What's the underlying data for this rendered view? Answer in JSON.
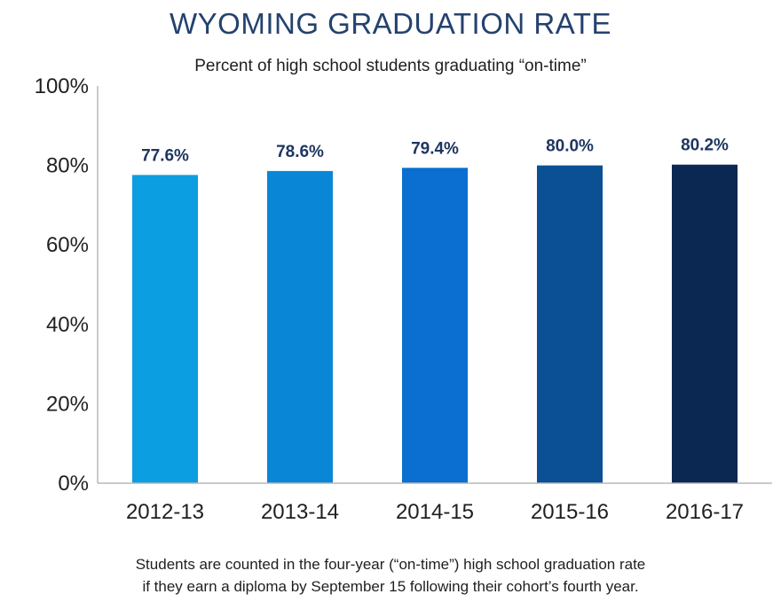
{
  "chart_data": {
    "type": "bar",
    "title": "WYOMING GRADUATION RATE",
    "subtitle": "Percent of high school students graduating “on-time”",
    "categories": [
      "2012-13",
      "2013-14",
      "2014-15",
      "2015-16",
      "2016-17"
    ],
    "values": [
      77.6,
      78.6,
      79.4,
      80.0,
      80.2
    ],
    "data_labels": [
      "77.6%",
      "78.6%",
      "79.4%",
      "80.0%",
      "80.2%"
    ],
    "bar_colors": [
      "#0b9ee0",
      "#0a86d6",
      "#0a6fd0",
      "#0b4f94",
      "#0b2852"
    ],
    "y_ticks": [
      0,
      20,
      40,
      60,
      80,
      100
    ],
    "y_tick_labels": [
      "0%",
      "20%",
      "40%",
      "60%",
      "80%",
      "100%"
    ],
    "ylim": [
      0,
      100
    ],
    "xlabel": "",
    "ylabel": "",
    "grid": false,
    "legend": "none"
  },
  "footnote": {
    "line1": "Students are counted in the four-year (“on-time”) high school graduation rate",
    "line2": "if they earn a diploma by September 15 following their cohort’s fourth year."
  },
  "colors": {
    "title": "#24426e",
    "axis": "#b8b8b8",
    "data_label": "#1e3660"
  }
}
